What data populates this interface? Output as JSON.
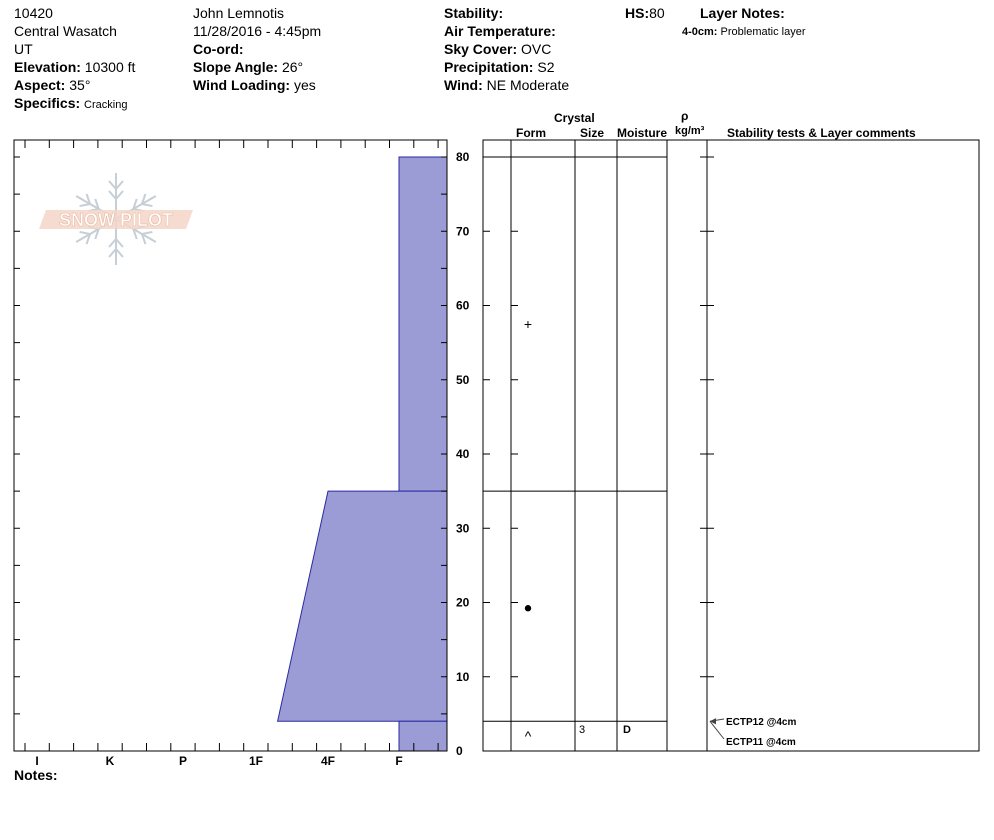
{
  "header": {
    "col1": {
      "id": "10420",
      "region": "Central Wasatch",
      "state": "UT",
      "elevation_label": "Elevation:",
      "elevation": "10300 ft",
      "aspect_label": "Aspect:",
      "aspect": "35°",
      "specifics_label": "Specifics:",
      "specifics": "Cracking"
    },
    "col2": {
      "observer": "John  Lemnotis",
      "datetime": "11/28/2016 - 4:45pm",
      "coord_label": "Co-ord:",
      "coord": "",
      "slope_label": "Slope Angle:",
      "slope": "26°",
      "wind_loading_label": "Wind Loading:",
      "wind_loading": "yes"
    },
    "col3": {
      "stability_label": "Stability:",
      "stability": "",
      "air_temp_label": "Air Temperature:",
      "air_temp": "",
      "sky_label": "Sky Cover:",
      "sky": "OVC",
      "precip_label": "Precipitation:",
      "precip": "S2",
      "wind_label": "Wind:",
      "wind": "NE Moderate"
    },
    "hs_label": "HS:",
    "hs": "80",
    "layer_notes_label": "Layer Notes:",
    "layer_note_range": "4-0cm:",
    "layer_note_text": "Problematic layer"
  },
  "logo": {
    "text": "SNOW PILOT"
  },
  "columns": {
    "crystal": "Crystal",
    "form": "Form",
    "size": "Size",
    "moisture": "Moisture",
    "rho": "ρ",
    "density_unit": "kg/m³",
    "stability": "Stability tests & Layer comments"
  },
  "notes_label": "Notes:",
  "colors": {
    "layer_fill": "#9b9bd6",
    "layer_stroke": "#2a2aa0"
  },
  "chart_data": {
    "type": "area",
    "y_axis": {
      "min": 0,
      "max": 80,
      "ticks": [
        0,
        10,
        20,
        30,
        40,
        50,
        60,
        70,
        80
      ],
      "unit": "cm"
    },
    "hardness_scale": [
      "I",
      "K",
      "P",
      "1F",
      "4F",
      "F"
    ],
    "hardness_index": {
      "I": 0,
      "K": 1,
      "P": 2,
      "1F": 3,
      "4F": 4,
      "F": 5
    },
    "layers": [
      {
        "top": 80,
        "bottom": 35,
        "hardness_top": 5.0,
        "hardness_bottom": 5.0
      },
      {
        "top": 35,
        "bottom": 4,
        "hardness_top": 4.0,
        "hardness_bottom": 3.3
      },
      {
        "top": 4,
        "bottom": 0,
        "hardness_top": 5.0,
        "hardness_bottom": 5.0
      }
    ],
    "layer_boundaries": [
      80,
      35,
      4
    ],
    "grain_forms": [
      {
        "height": 57.5,
        "symbol": "+"
      },
      {
        "height": 19.5,
        "symbol": "●"
      },
      {
        "height": 2,
        "symbol": "^"
      }
    ],
    "sizes": [
      {
        "height": 2,
        "value": "3"
      }
    ],
    "moisture": [
      {
        "height": 2,
        "value": "D"
      }
    ],
    "stability_tests": [
      {
        "height": 4,
        "label": "ECTP12 @4cm"
      },
      {
        "height": 4,
        "label": "ECTP11 @4cm"
      }
    ]
  }
}
